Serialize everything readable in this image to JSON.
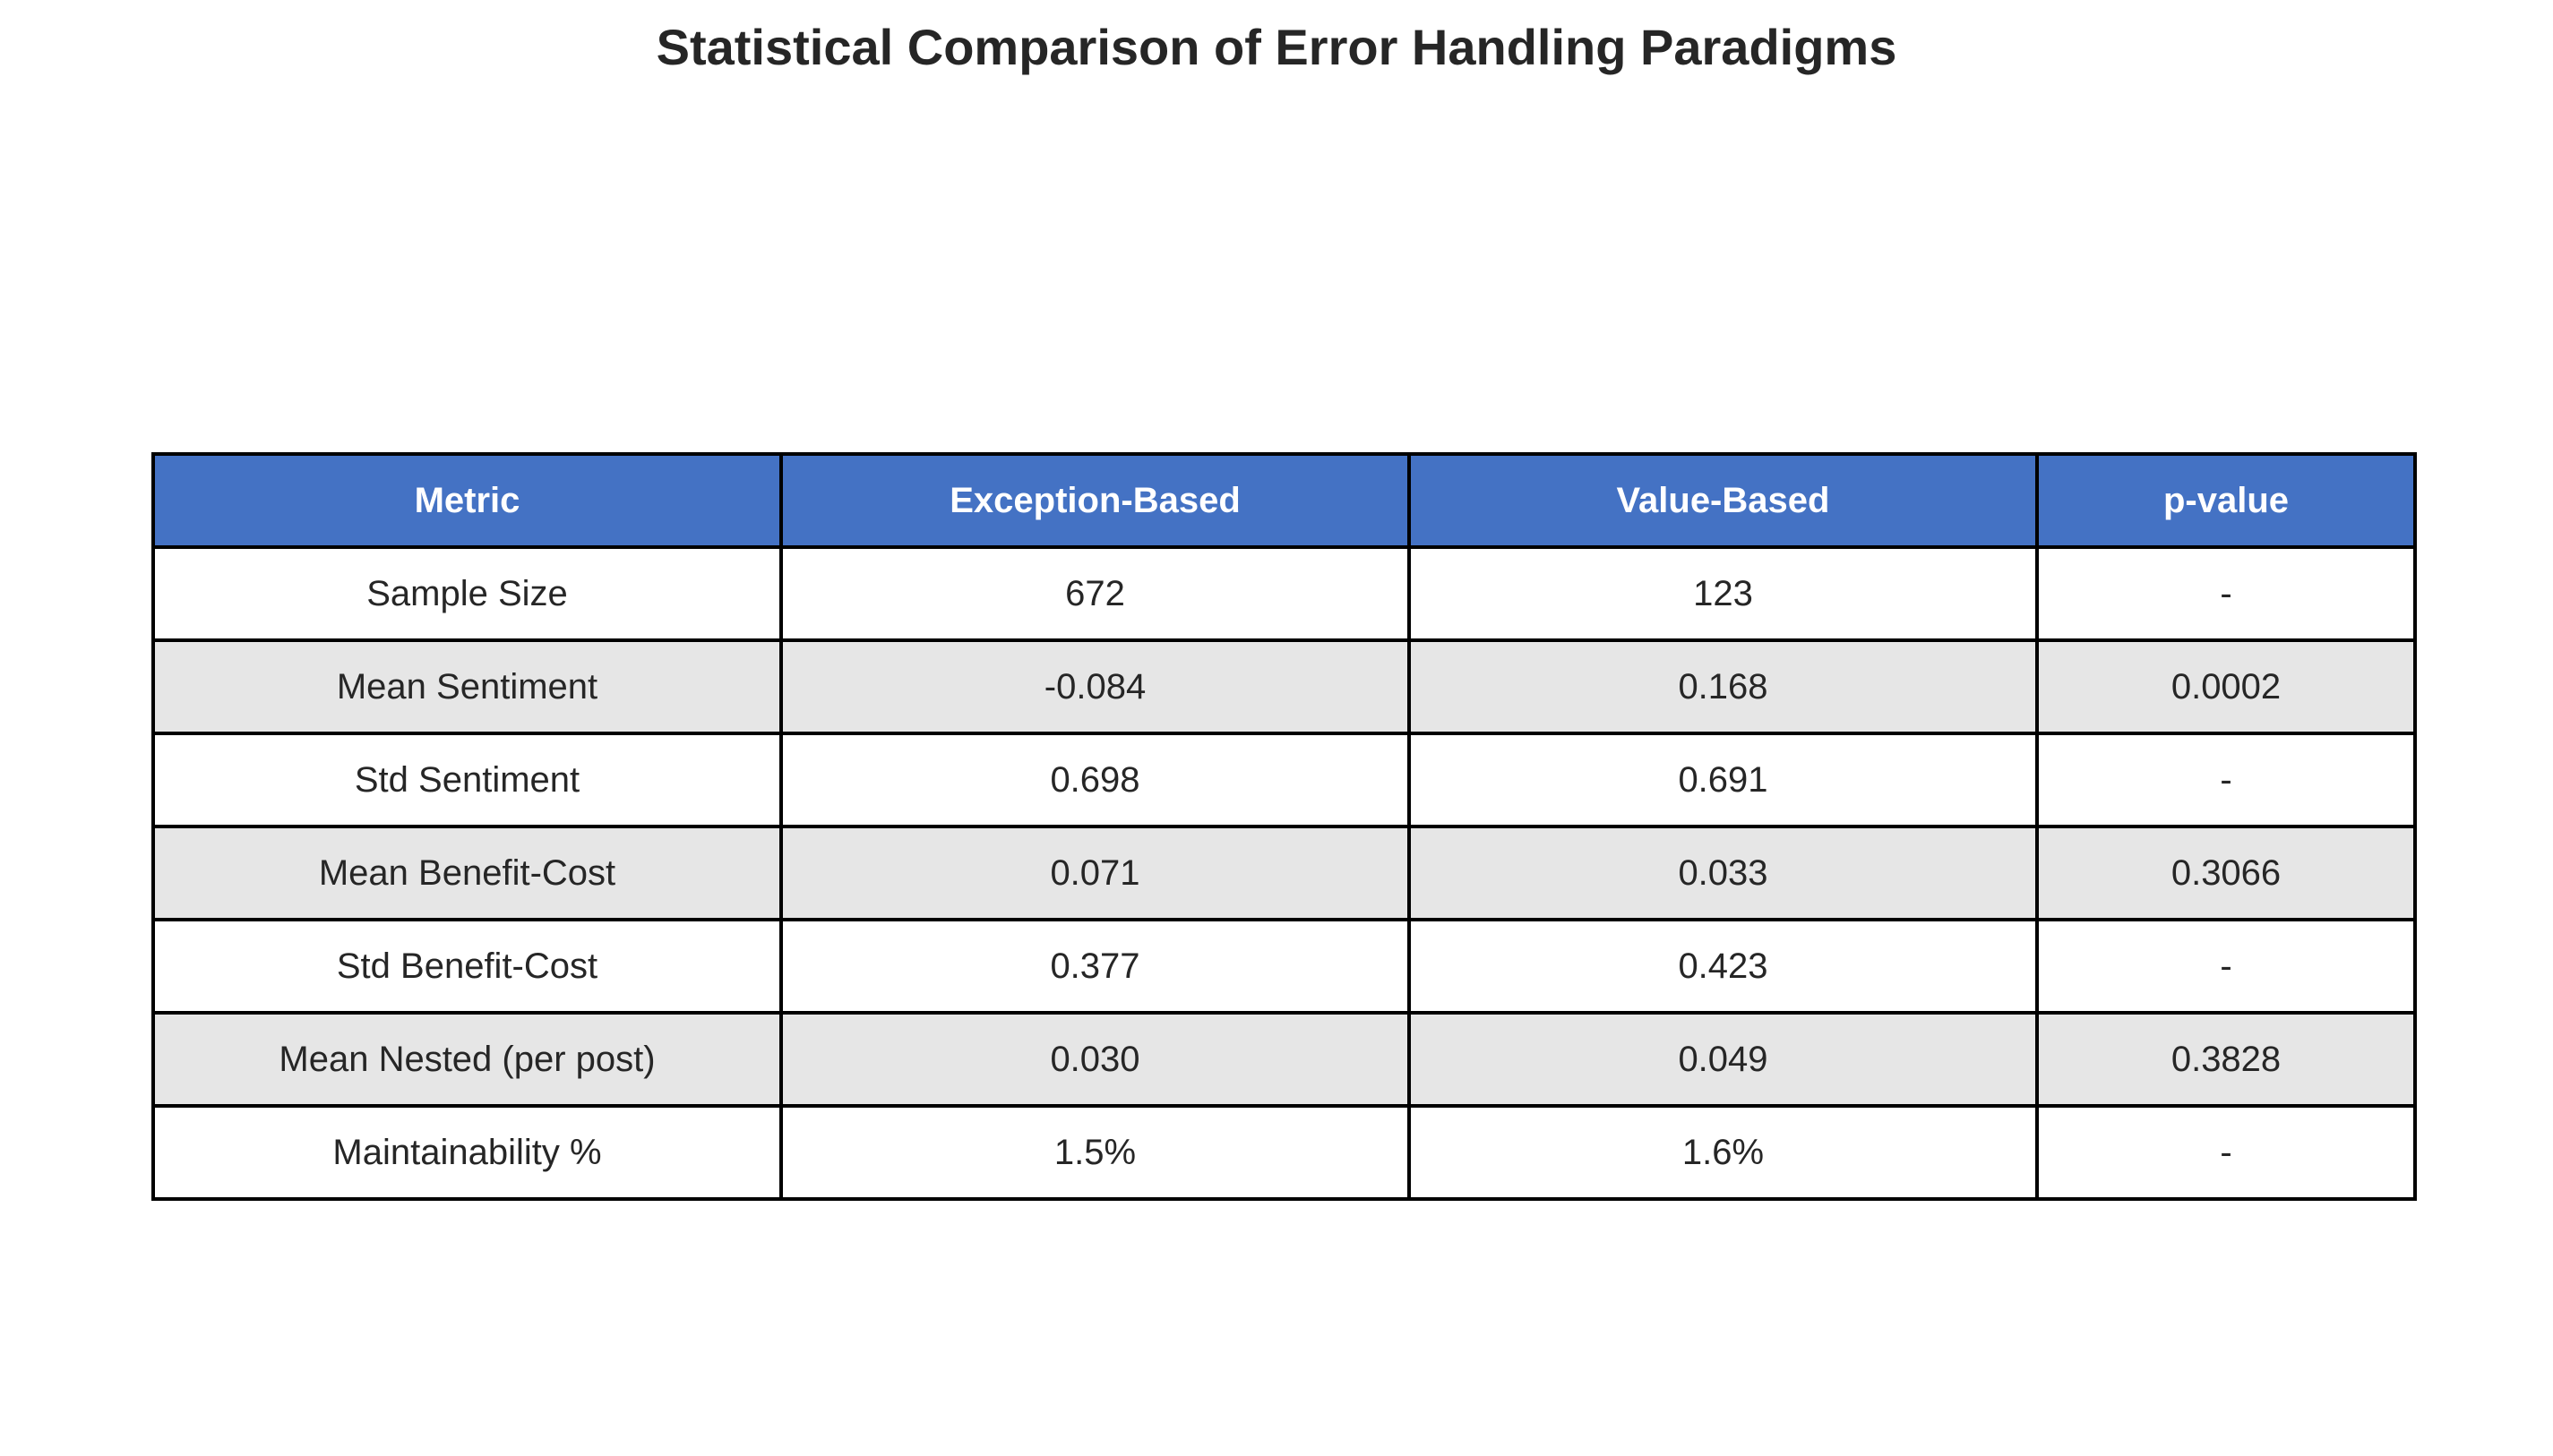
{
  "chart_data": {
    "type": "table",
    "title": "Statistical Comparison of Error Handling Paradigms",
    "columns": [
      "Metric",
      "Exception-Based",
      "Value-Based",
      "p-value"
    ],
    "rows": [
      [
        "Sample Size",
        "672",
        "123",
        "-"
      ],
      [
        "Mean Sentiment",
        "-0.084",
        "0.168",
        "0.0002"
      ],
      [
        "Std Sentiment",
        "0.698",
        "0.691",
        "-"
      ],
      [
        "Mean Benefit-Cost",
        "0.071",
        "0.033",
        "0.3066"
      ],
      [
        "Std Benefit-Cost",
        "0.377",
        "0.423",
        "-"
      ],
      [
        "Mean Nested (per post)",
        "0.030",
        "0.049",
        "0.3828"
      ],
      [
        "Maintainability %",
        "1.5%",
        "1.6%",
        "-"
      ]
    ],
    "row_shading": [
      "#ffffff",
      "#e6e6e6"
    ]
  },
  "colors": {
    "header_background": "#4472c4",
    "header_text": "#ffffff",
    "alt_row_background": "#e6e6e6",
    "border": "#000000"
  }
}
